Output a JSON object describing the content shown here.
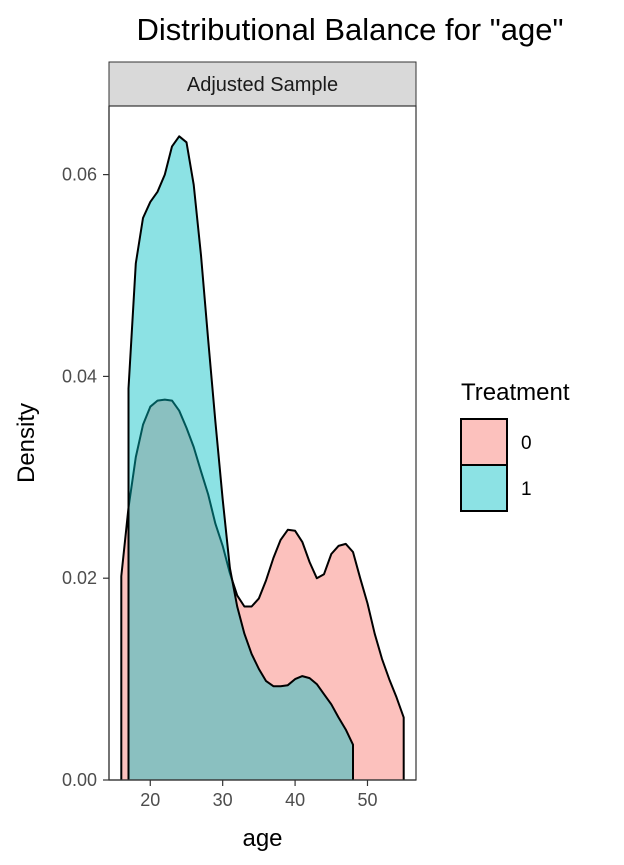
{
  "chart_data": {
    "type": "area",
    "title": "Distributional Balance for \"age\"",
    "facet": "Adjusted Sample",
    "xlabel": "age",
    "ylabel": "Density",
    "xlim": [
      14.3,
      56.7
    ],
    "ylim": [
      0,
      0.0668
    ],
    "x_ticks": [
      20,
      30,
      40,
      50
    ],
    "y_ticks": [
      0.0,
      0.02,
      0.04,
      0.06
    ],
    "y_tick_labels": [
      "0.00",
      "0.02",
      "0.04",
      "0.06"
    ],
    "grid": false,
    "legend": {
      "title": "Treatment",
      "placement": "right"
    },
    "series": [
      {
        "name": "0",
        "color": "#F8766D",
        "x": [
          16,
          17,
          18,
          19,
          20,
          21,
          22,
          23,
          24,
          25,
          26,
          27,
          28,
          29,
          30,
          31,
          32,
          33,
          34,
          35,
          36,
          37,
          38,
          39,
          40,
          41,
          42,
          43,
          44,
          45,
          46,
          47,
          48,
          49,
          50,
          51,
          52,
          53,
          54,
          55
        ],
        "y": [
          0.0202,
          0.027,
          0.032,
          0.0352,
          0.037,
          0.0376,
          0.0377,
          0.0376,
          0.0366,
          0.0349,
          0.033,
          0.0306,
          0.0283,
          0.0254,
          0.0232,
          0.0205,
          0.0183,
          0.0172,
          0.0172,
          0.018,
          0.0198,
          0.022,
          0.0238,
          0.0248,
          0.0247,
          0.0236,
          0.0216,
          0.02,
          0.0204,
          0.0224,
          0.0232,
          0.0234,
          0.0226,
          0.02,
          0.0175,
          0.0145,
          0.012,
          0.01,
          0.0082,
          0.0062
        ]
      },
      {
        "name": "1",
        "color": "#00BFC4",
        "x": [
          17,
          18,
          19,
          20,
          21,
          22,
          23,
          24,
          25,
          26,
          27,
          28,
          29,
          30,
          31,
          32,
          33,
          34,
          35,
          36,
          37,
          38,
          39,
          40,
          41,
          42,
          43,
          44,
          45,
          46,
          47,
          48
        ],
        "y": [
          0.0388,
          0.0512,
          0.0557,
          0.0573,
          0.0583,
          0.06,
          0.0628,
          0.0638,
          0.0632,
          0.059,
          0.052,
          0.0436,
          0.0355,
          0.0278,
          0.021,
          0.0172,
          0.0145,
          0.0125,
          0.011,
          0.0098,
          0.0093,
          0.0093,
          0.0094,
          0.01,
          0.0103,
          0.0101,
          0.0095,
          0.0085,
          0.0075,
          0.0062,
          0.005,
          0.0035
        ]
      }
    ]
  }
}
